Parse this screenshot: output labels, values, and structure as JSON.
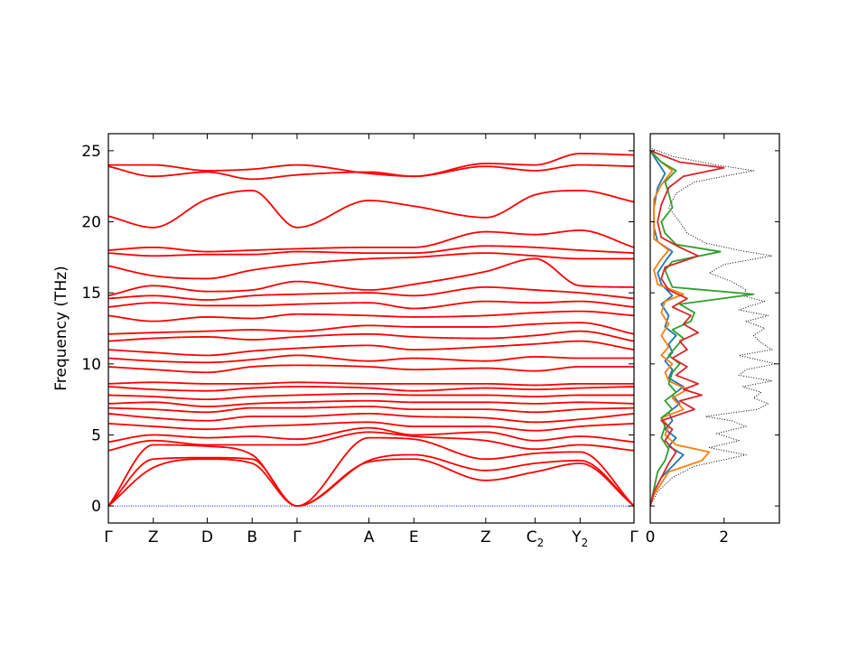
{
  "chart_data": [
    {
      "type": "line",
      "subtype": "phonon-band-structure",
      "ylabel": "Frequency (THz)",
      "ylim": [
        -1.2,
        26.2
      ],
      "yticks": [
        0,
        5,
        10,
        15,
        20,
        25
      ],
      "ytick_labels": [
        "0",
        "5",
        "10",
        "15",
        "20",
        "25"
      ],
      "x_points": [
        {
          "label": "Γ",
          "sub": "",
          "pos": 0.0
        },
        {
          "label": "Z",
          "sub": "",
          "pos": 0.5
        },
        {
          "label": "D",
          "sub": "",
          "pos": 1.1
        },
        {
          "label": "B",
          "sub": "",
          "pos": 1.6
        },
        {
          "label": "Γ",
          "sub": "",
          "pos": 2.1
        },
        {
          "label": "A",
          "sub": "",
          "pos": 2.9
        },
        {
          "label": "E",
          "sub": "",
          "pos": 3.4
        },
        {
          "label": "Z",
          "sub": "",
          "pos": 4.2
        },
        {
          "label": "C",
          "sub": "2",
          "pos": 4.75
        },
        {
          "label": "Y",
          "sub": "2",
          "pos": 5.25
        },
        {
          "label": "Γ",
          "sub": "",
          "pos": 5.85
        }
      ],
      "xlim": [
        0.0,
        5.85
      ],
      "band_color": "#ff0000",
      "zero_line_color": "#0000ff",
      "bands_at_points": [
        [
          0,
          2.7,
          3.3,
          3.0,
          0,
          3.1,
          3.3,
          1.8,
          2.4,
          3.0,
          0
        ],
        [
          0,
          3.3,
          3.4,
          3.3,
          0,
          3.2,
          3.6,
          2.5,
          3.0,
          3.2,
          0
        ],
        [
          0,
          4.3,
          4.2,
          3.6,
          0,
          4.8,
          4.7,
          3.3,
          3.7,
          3.8,
          0
        ],
        [
          3.9,
          4.6,
          4.3,
          4.3,
          4.3,
          5.2,
          4.9,
          4.6,
          4.0,
          4.3,
          3.9
        ],
        [
          4.5,
          5.0,
          4.8,
          4.9,
          4.7,
          5.5,
          5.0,
          5.2,
          4.6,
          4.9,
          4.5
        ],
        [
          5.8,
          5.6,
          5.4,
          5.6,
          5.7,
          5.9,
          5.6,
          5.6,
          5.3,
          5.6,
          5.8
        ],
        [
          6.5,
          6.2,
          6.0,
          6.3,
          6.3,
          6.5,
          6.3,
          6.2,
          5.9,
          6.1,
          6.5
        ],
        [
          6.9,
          6.8,
          6.6,
          6.9,
          6.9,
          7.0,
          6.8,
          6.8,
          6.6,
          6.8,
          6.9
        ],
        [
          7.2,
          7.3,
          7.0,
          7.2,
          7.3,
          7.4,
          7.3,
          7.3,
          7.2,
          7.3,
          7.2
        ],
        [
          7.8,
          7.7,
          7.5,
          7.7,
          7.8,
          7.9,
          7.8,
          7.8,
          7.7,
          7.8,
          7.8
        ],
        [
          8.4,
          8.2,
          8.1,
          8.3,
          8.4,
          8.3,
          8.1,
          8.3,
          8.2,
          8.3,
          8.4
        ],
        [
          8.6,
          8.7,
          8.6,
          8.6,
          8.7,
          8.6,
          8.6,
          8.6,
          8.5,
          8.6,
          8.6
        ],
        [
          9.8,
          9.6,
          9.4,
          9.8,
          9.9,
          9.8,
          9.6,
          9.7,
          9.5,
          9.8,
          9.8
        ],
        [
          10.4,
          10.2,
          10.1,
          10.3,
          10.6,
          10.2,
          10.4,
          10.2,
          10.5,
          10.4,
          10.4
        ],
        [
          11.0,
          10.8,
          10.6,
          10.9,
          11.1,
          11.3,
          11.0,
          11.2,
          11.4,
          11.6,
          11.0
        ],
        [
          11.6,
          11.8,
          11.9,
          11.7,
          11.9,
          12.1,
          11.9,
          11.8,
          12.0,
          12.3,
          11.6
        ],
        [
          12.1,
          12.2,
          12.3,
          12.4,
          12.3,
          12.7,
          12.6,
          12.6,
          12.8,
          12.9,
          12.1
        ],
        [
          13.4,
          13.0,
          13.3,
          13.2,
          13.5,
          13.4,
          13.3,
          13.4,
          13.6,
          13.7,
          13.4
        ],
        [
          14.0,
          14.3,
          14.1,
          14.1,
          14.2,
          14.3,
          13.9,
          14.4,
          14.3,
          14.4,
          14.0
        ],
        [
          14.6,
          14.8,
          14.5,
          14.8,
          14.9,
          15.0,
          14.8,
          15.4,
          15.2,
          15.0,
          14.6
        ],
        [
          14.8,
          15.5,
          15.1,
          15.2,
          15.8,
          15.2,
          15.6,
          16.5,
          17.4,
          15.5,
          15.4
        ],
        [
          16.9,
          16.2,
          16.0,
          16.6,
          17.0,
          17.4,
          17.5,
          17.8,
          17.6,
          17.4,
          17.4
        ],
        [
          17.8,
          17.6,
          17.7,
          17.7,
          17.9,
          17.8,
          17.8,
          18.3,
          18.2,
          18.0,
          17.8
        ],
        [
          18.0,
          18.2,
          17.9,
          18.0,
          18.1,
          18.2,
          18.2,
          19.3,
          19.1,
          19.4,
          18.2
        ],
        [
          20.4,
          19.6,
          21.6,
          22.2,
          19.6,
          21.5,
          21.1,
          20.3,
          21.9,
          22.2,
          21.4
        ],
        [
          23.9,
          23.2,
          23.5,
          23.0,
          23.3,
          23.5,
          23.2,
          23.9,
          23.6,
          24.0,
          23.9
        ],
        [
          24.0,
          24.0,
          23.6,
          23.7,
          24.0,
          23.4,
          23.2,
          24.1,
          24.0,
          24.8,
          24.7
        ]
      ]
    },
    {
      "type": "line",
      "subtype": "phonon-density-of-states",
      "xlim": [
        0,
        3.5
      ],
      "xticks": [
        0,
        2
      ],
      "xtick_labels": [
        "0",
        "2"
      ],
      "ylim": [
        -1.2,
        26.2
      ],
      "series": [
        {
          "color": "#000000",
          "style": "dotted",
          "points": [
            [
              0,
              0
            ],
            [
              0.2,
              1.0
            ],
            [
              0.6,
              2.0
            ],
            [
              1.2,
              2.8
            ],
            [
              2.6,
              3.6
            ],
            [
              1.6,
              4.1
            ],
            [
              2.4,
              4.6
            ],
            [
              1.8,
              5.1
            ],
            [
              2.6,
              5.6
            ],
            [
              2.2,
              6.0
            ],
            [
              1.5,
              6.3
            ],
            [
              2.9,
              6.8
            ],
            [
              3.2,
              7.2
            ],
            [
              2.8,
              7.6
            ],
            [
              3.0,
              8.0
            ],
            [
              2.5,
              8.4
            ],
            [
              3.3,
              8.8
            ],
            [
              2.4,
              9.2
            ],
            [
              2.6,
              9.6
            ],
            [
              3.4,
              10.0
            ],
            [
              2.4,
              10.6
            ],
            [
              3.3,
              11.0
            ],
            [
              3.0,
              11.5
            ],
            [
              2.8,
              12.0
            ],
            [
              3.1,
              12.5
            ],
            [
              2.6,
              13.0
            ],
            [
              3.2,
              13.4
            ],
            [
              2.4,
              13.8
            ],
            [
              3.1,
              14.4
            ],
            [
              2.5,
              14.8
            ],
            [
              2.6,
              15.2
            ],
            [
              2.2,
              15.8
            ],
            [
              1.6,
              16.4
            ],
            [
              2.0,
              17.0
            ],
            [
              3.3,
              17.6
            ],
            [
              2.4,
              18.0
            ],
            [
              1.5,
              18.5
            ],
            [
              1.0,
              19.2
            ],
            [
              0.8,
              20.0
            ],
            [
              0.5,
              21.0
            ],
            [
              0.7,
              22.0
            ],
            [
              1.2,
              22.8
            ],
            [
              2.8,
              23.6
            ],
            [
              1.8,
              24.0
            ],
            [
              0.6,
              24.6
            ],
            [
              0,
              25.2
            ]
          ]
        },
        {
          "color": "#1f77b4",
          "style": "solid",
          "points": [
            [
              0,
              0
            ],
            [
              0.1,
              1.0
            ],
            [
              0.3,
              2.0
            ],
            [
              0.6,
              2.8
            ],
            [
              0.9,
              3.6
            ],
            [
              0.5,
              4.2
            ],
            [
              0.7,
              4.8
            ],
            [
              0.4,
              5.4
            ],
            [
              0.6,
              6.0
            ],
            [
              0.5,
              6.6
            ],
            [
              0.8,
              7.2
            ],
            [
              0.6,
              7.8
            ],
            [
              0.9,
              8.4
            ],
            [
              0.5,
              9.0
            ],
            [
              0.6,
              9.6
            ],
            [
              0.4,
              10.2
            ],
            [
              0.6,
              10.8
            ],
            [
              0.5,
              11.4
            ],
            [
              0.7,
              12.0
            ],
            [
              0.4,
              12.6
            ],
            [
              0.5,
              13.4
            ],
            [
              0.3,
              14.2
            ],
            [
              0.6,
              14.8
            ],
            [
              0.3,
              15.6
            ],
            [
              0.2,
              16.4
            ],
            [
              0.4,
              17.2
            ],
            [
              0.6,
              17.9
            ],
            [
              0.2,
              18.6
            ],
            [
              0.1,
              19.6
            ],
            [
              0.1,
              21.0
            ],
            [
              0.2,
              22.4
            ],
            [
              0.4,
              23.4
            ],
            [
              0.2,
              24.2
            ],
            [
              0,
              25.0
            ]
          ]
        },
        {
          "color": "#ff7f0e",
          "style": "solid",
          "points": [
            [
              0,
              0
            ],
            [
              0.1,
              0.8
            ],
            [
              0.3,
              1.6
            ],
            [
              0.5,
              2.4
            ],
            [
              1.4,
              3.2
            ],
            [
              1.6,
              3.8
            ],
            [
              0.7,
              4.3
            ],
            [
              0.4,
              5.0
            ],
            [
              0.5,
              5.6
            ],
            [
              0.3,
              6.2
            ],
            [
              0.9,
              6.8
            ],
            [
              0.6,
              7.6
            ],
            [
              1.0,
              8.2
            ],
            [
              0.5,
              8.8
            ],
            [
              0.4,
              9.4
            ],
            [
              0.6,
              10.0
            ],
            [
              0.3,
              10.6
            ],
            [
              0.5,
              11.2
            ],
            [
              0.3,
              12.0
            ],
            [
              0.5,
              12.8
            ],
            [
              0.3,
              13.6
            ],
            [
              0.4,
              14.4
            ],
            [
              0.9,
              14.9
            ],
            [
              0.2,
              15.6
            ],
            [
              0.1,
              16.6
            ],
            [
              0.3,
              17.4
            ],
            [
              0.5,
              18.0
            ],
            [
              0.1,
              18.8
            ],
            [
              0.1,
              20.0
            ],
            [
              0.1,
              21.6
            ],
            [
              0.3,
              22.6
            ],
            [
              0.6,
              23.6
            ],
            [
              0.3,
              24.2
            ],
            [
              0,
              25.0
            ]
          ]
        },
        {
          "color": "#2ca02c",
          "style": "solid",
          "points": [
            [
              0,
              0
            ],
            [
              0.1,
              1.2
            ],
            [
              0.2,
              2.4
            ],
            [
              0.4,
              3.2
            ],
            [
              0.5,
              4.0
            ],
            [
              0.3,
              4.8
            ],
            [
              0.4,
              5.6
            ],
            [
              0.3,
              6.2
            ],
            [
              0.6,
              6.8
            ],
            [
              0.4,
              7.4
            ],
            [
              0.7,
              8.0
            ],
            [
              0.5,
              8.6
            ],
            [
              0.6,
              9.4
            ],
            [
              0.8,
              10.0
            ],
            [
              0.5,
              10.6
            ],
            [
              0.7,
              11.2
            ],
            [
              0.9,
              11.8
            ],
            [
              0.6,
              12.4
            ],
            [
              1.1,
              13.0
            ],
            [
              1.2,
              13.6
            ],
            [
              0.8,
              14.2
            ],
            [
              2.8,
              14.9
            ],
            [
              0.6,
              15.4
            ],
            [
              0.5,
              16.0
            ],
            [
              0.4,
              16.6
            ],
            [
              0.6,
              17.2
            ],
            [
              1.9,
              17.9
            ],
            [
              0.7,
              18.4
            ],
            [
              0.4,
              19.2
            ],
            [
              0.3,
              20.0
            ],
            [
              0.6,
              21.0
            ],
            [
              0.5,
              22.0
            ],
            [
              0.4,
              22.8
            ],
            [
              0.7,
              23.6
            ],
            [
              0.3,
              24.2
            ],
            [
              0,
              25.0
            ]
          ]
        },
        {
          "color": "#d62728",
          "style": "solid",
          "points": [
            [
              0,
              0
            ],
            [
              0.1,
              1.0
            ],
            [
              0.3,
              2.0
            ],
            [
              0.5,
              3.0
            ],
            [
              0.7,
              3.8
            ],
            [
              0.4,
              4.6
            ],
            [
              0.6,
              5.4
            ],
            [
              0.3,
              6.0
            ],
            [
              1.2,
              6.8
            ],
            [
              0.8,
              7.4
            ],
            [
              1.4,
              7.8
            ],
            [
              0.9,
              8.2
            ],
            [
              1.3,
              8.6
            ],
            [
              0.7,
              9.2
            ],
            [
              1.0,
              9.8
            ],
            [
              0.6,
              10.4
            ],
            [
              1.0,
              11.0
            ],
            [
              0.8,
              11.6
            ],
            [
              1.3,
              12.2
            ],
            [
              0.9,
              12.8
            ],
            [
              1.1,
              13.4
            ],
            [
              0.6,
              14.0
            ],
            [
              1.0,
              14.6
            ],
            [
              0.5,
              15.2
            ],
            [
              0.3,
              16.0
            ],
            [
              0.4,
              16.8
            ],
            [
              1.3,
              17.6
            ],
            [
              0.8,
              18.2
            ],
            [
              0.3,
              18.9
            ],
            [
              0.2,
              20.0
            ],
            [
              0.3,
              21.2
            ],
            [
              0.5,
              22.4
            ],
            [
              0.9,
              23.2
            ],
            [
              2.0,
              23.8
            ],
            [
              0.8,
              24.2
            ],
            [
              0,
              25.0
            ]
          ]
        }
      ]
    }
  ]
}
